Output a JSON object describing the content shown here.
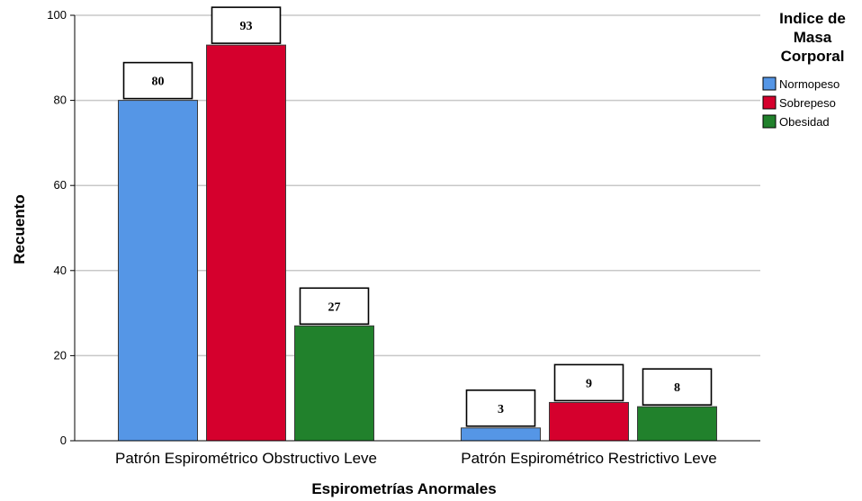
{
  "chart_data": {
    "type": "bar",
    "xlabel": "Espirometrías Anormales",
    "ylabel": "Recuento",
    "ylim": [
      0,
      100
    ],
    "yticks": [
      0,
      20,
      40,
      60,
      80,
      100
    ],
    "grid": true,
    "legend_position": "top-right",
    "categories": [
      "Patrón Espirométrico Obstructivo Leve",
      "Patrón Espirométrico Restrictivo Leve"
    ],
    "legend_title": [
      "Indice de",
      "Masa",
      "Corporal"
    ],
    "series": [
      {
        "name": "Normopeso",
        "color": "#5596e6",
        "values": [
          80,
          3
        ]
      },
      {
        "name": "Sobrepeso",
        "color": "#d5002d",
        "values": [
          93,
          9
        ]
      },
      {
        "name": "Obesidad",
        "color": "#21812c",
        "values": [
          27,
          8
        ]
      }
    ]
  }
}
